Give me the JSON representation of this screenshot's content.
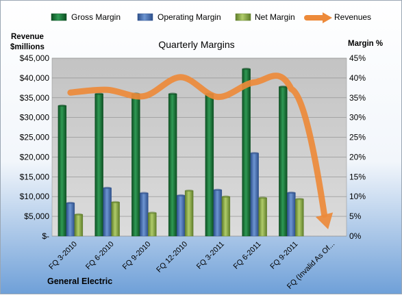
{
  "chart_data": {
    "type": "bar",
    "title": "Quarterly Margins",
    "left_axis_title": [
      "Revenue",
      "$millions"
    ],
    "right_axis_title": "Margin %",
    "company": "General Electric",
    "categories": [
      "FQ 3-2010",
      "FQ 6-2010",
      "FQ 9-2010",
      "FQ 12-2010",
      "FQ 3-2011",
      "FQ 6-2011",
      "FQ 9-2011",
      "FQ (Invalid As Of..."
    ],
    "left_axis": {
      "ylim": [
        0,
        45000
      ],
      "ticks": [
        "$-",
        "$5,000",
        "$10,000",
        "$15,000",
        "$20,000",
        "$25,000",
        "$30,000",
        "$35,000",
        "$40,000",
        "$45,000"
      ]
    },
    "right_axis": {
      "ylim": [
        0,
        45
      ],
      "ticks": [
        "0%",
        "5%",
        "10%",
        "15%",
        "20%",
        "25%",
        "30%",
        "35%",
        "40%",
        "45%"
      ]
    },
    "series": [
      {
        "name": "Gross Margin",
        "axis": "right",
        "color": "#1e7a3c",
        "values": [
          33.0,
          36.0,
          36.0,
          36.0,
          36.0,
          42.3,
          37.8,
          null
        ]
      },
      {
        "name": "Operating Margin",
        "axis": "right",
        "color": "#4a74b8",
        "values": [
          8.4,
          12.2,
          10.9,
          10.3,
          11.7,
          21.0,
          11.0,
          null
        ]
      },
      {
        "name": "Net Margin",
        "axis": "right",
        "color": "#8fb04a",
        "values": [
          5.5,
          8.6,
          5.9,
          11.5,
          10.0,
          9.7,
          9.4,
          null
        ]
      },
      {
        "name": "Revenues",
        "axis": "left",
        "type": "line",
        "color": "#ed8a3a",
        "values": [
          36300,
          37000,
          35400,
          40200,
          35200,
          38900,
          37200,
          0
        ]
      }
    ],
    "legend_position": "top",
    "grid": true
  }
}
